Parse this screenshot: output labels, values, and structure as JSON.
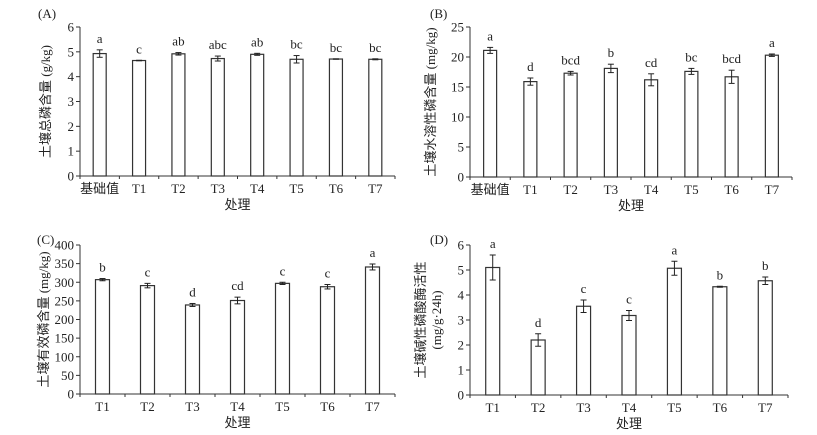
{
  "chart_data": [
    {
      "type": "bar",
      "panel_label": "(A)",
      "ylabel": "土壤总磷含量 (g/kg)",
      "xlabel": "处理",
      "categories": [
        "基础值",
        "T1",
        "T2",
        "T3",
        "T4",
        "T5",
        "T6",
        "T7"
      ],
      "values": [
        4.93,
        4.65,
        4.92,
        4.73,
        4.9,
        4.7,
        4.71,
        4.7
      ],
      "errors": [
        0.15,
        0.01,
        0.05,
        0.1,
        0.04,
        0.15,
        0.01,
        0.02
      ],
      "significance": [
        "a",
        "c",
        "ab",
        "abc",
        "ab",
        "bc",
        "bc",
        "bc"
      ],
      "ylim": [
        0,
        6
      ],
      "yticks": [
        0,
        1,
        2,
        3,
        4,
        5,
        6
      ]
    },
    {
      "type": "bar",
      "panel_label": "(B)",
      "ylabel": "土壤水溶性磷含量 (mg/kg)",
      "xlabel": "处理",
      "categories": [
        "基础值",
        "T1",
        "T2",
        "T3",
        "T4",
        "T5",
        "T6",
        "T7"
      ],
      "values": [
        21.1,
        15.9,
        17.3,
        18.1,
        16.2,
        17.6,
        16.7,
        20.3
      ],
      "errors": [
        0.5,
        0.6,
        0.3,
        0.7,
        1.0,
        0.5,
        1.1,
        0.2
      ],
      "significance": [
        "a",
        "d",
        "bcd",
        "b",
        "cd",
        "bc",
        "bcd",
        "a"
      ],
      "ylim": [
        0,
        25
      ],
      "yticks": [
        0,
        5,
        10,
        15,
        20,
        25
      ]
    },
    {
      "type": "bar",
      "panel_label": "(C)",
      "ylabel": "土壤有效磷含量 (mg/kg)",
      "xlabel": "处理",
      "categories": [
        "T1",
        "T2",
        "T3",
        "T4",
        "T5",
        "T6",
        "T7"
      ],
      "values": [
        307,
        291,
        239,
        251,
        297,
        288,
        341
      ],
      "errors": [
        3,
        6,
        4,
        9,
        3,
        6,
        8
      ],
      "significance": [
        "b",
        "c",
        "d",
        "cd",
        "c",
        "c",
        "a"
      ],
      "ylim": [
        0,
        400
      ],
      "yticks": [
        0,
        50,
        100,
        150,
        200,
        250,
        300,
        350,
        400
      ]
    },
    {
      "type": "bar",
      "panel_label": "(D)",
      "ylabel": "土壤碱性磷酸酶活性",
      "ylabel2": "(mg/g·24h)",
      "xlabel": "处理",
      "categories": [
        "T1",
        "T2",
        "T3",
        "T4",
        "T5",
        "T6",
        "T7"
      ],
      "values": [
        5.1,
        2.2,
        3.55,
        3.18,
        5.07,
        4.33,
        4.57
      ],
      "errors": [
        0.5,
        0.25,
        0.25,
        0.2,
        0.28,
        0.02,
        0.15
      ],
      "significance": [
        "a",
        "d",
        "c",
        "c",
        "a",
        "b",
        "b"
      ],
      "ylim": [
        0,
        6
      ],
      "yticks": [
        0,
        1,
        2,
        3,
        4,
        5,
        6
      ]
    }
  ]
}
